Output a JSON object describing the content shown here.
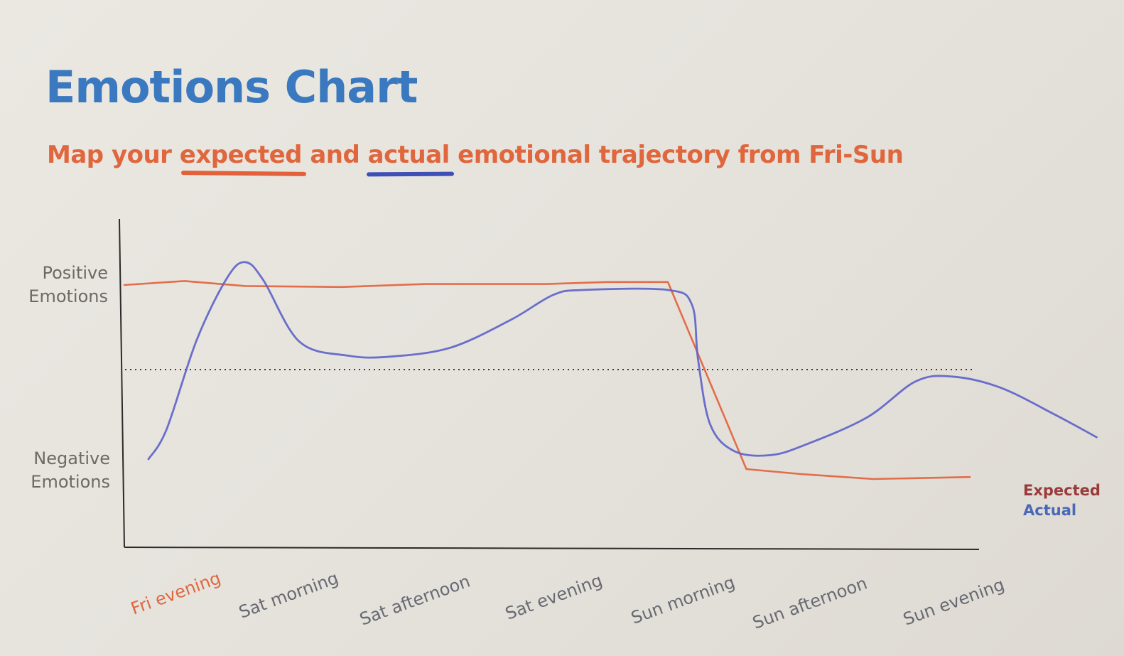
{
  "header": {
    "title": "Emotions Chart",
    "subtitle_parts": [
      "Map your ",
      "expected",
      " and ",
      "actual",
      " emotional trajectory from Fri-Sun"
    ]
  },
  "chart_data": {
    "type": "line",
    "title": "Emotions Chart",
    "subtitle": "Map your expected and actual emotional trajectory from Fri-Sun",
    "x": [
      "Fri evening",
      "Sat morning",
      "Sat afternoon",
      "Sat evening",
      "Sun morning",
      "Sun afternoon",
      "Sun evening"
    ],
    "y_labels": {
      "top": "Positive Emotions",
      "bottom": "Negative Emotions"
    },
    "y_labels_lines": {
      "top": [
        "Positive",
        "Emotions"
      ],
      "bottom": [
        "Negative",
        "Emotions"
      ]
    },
    "ylim": [
      -1.25,
      1.25
    ],
    "neutral_line": 0,
    "series": [
      {
        "name": "Expected",
        "color": "#e2603a",
        "points": [
          [
            0.0,
            0.85
          ],
          [
            0.5,
            0.89
          ],
          [
            1.0,
            0.84
          ],
          [
            1.8,
            0.83
          ],
          [
            2.5,
            0.86
          ],
          [
            3.5,
            0.86
          ],
          [
            4.0,
            0.88
          ],
          [
            4.5,
            0.88
          ],
          [
            5.15,
            -1.0
          ],
          [
            5.6,
            -1.05
          ],
          [
            6.2,
            -1.1
          ],
          [
            7.0,
            -1.08
          ]
        ]
      },
      {
        "name": "Actual",
        "color": "#5b62c8",
        "points": [
          [
            0.2,
            -0.9
          ],
          [
            0.35,
            -0.6
          ],
          [
            0.6,
            0.3
          ],
          [
            0.85,
            0.92
          ],
          [
            1.0,
            1.08
          ],
          [
            1.15,
            0.9
          ],
          [
            1.45,
            0.28
          ],
          [
            1.85,
            0.14
          ],
          [
            2.2,
            0.13
          ],
          [
            2.7,
            0.22
          ],
          [
            3.2,
            0.5
          ],
          [
            3.55,
            0.75
          ],
          [
            3.8,
            0.8
          ],
          [
            4.5,
            0.8
          ],
          [
            4.7,
            0.65
          ],
          [
            4.75,
            0.1
          ],
          [
            4.85,
            -0.55
          ],
          [
            5.05,
            -0.82
          ],
          [
            5.35,
            -0.86
          ],
          [
            5.65,
            -0.75
          ],
          [
            6.15,
            -0.48
          ],
          [
            6.55,
            -0.12
          ],
          [
            6.85,
            -0.07
          ],
          [
            7.25,
            -0.18
          ],
          [
            7.7,
            -0.45
          ],
          [
            8.05,
            -0.68
          ]
        ]
      }
    ],
    "legend": [
      "Expected",
      "Actual"
    ],
    "legend_position": "right",
    "grid": false
  }
}
